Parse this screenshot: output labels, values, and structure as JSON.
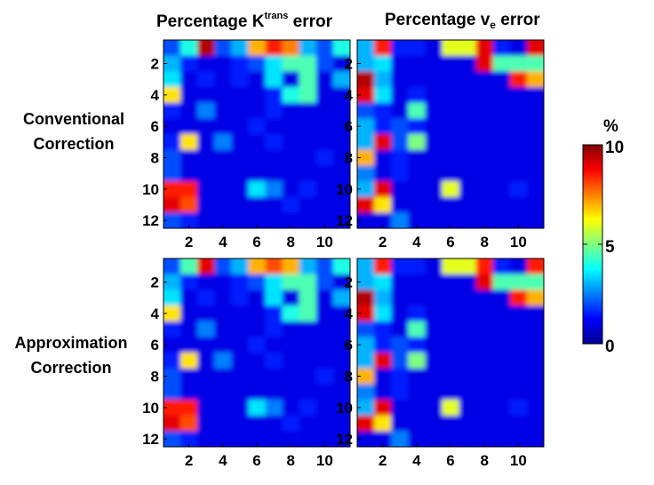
{
  "column_titles": {
    "ktrans_prefix": "Percentage K",
    "ktrans_sup": "trans",
    "ktrans_suffix": " error",
    "ve_prefix": "Percentage v",
    "ve_sub": "e",
    "ve_suffix": " error"
  },
  "row_titles": {
    "conventional_line1": "Conventional",
    "conventional_line2": "Correction",
    "approximation_line1": "Approximation",
    "approximation_line2": "Correction"
  },
  "colorbar": {
    "unit": "%",
    "ticks": [
      "0",
      "5",
      "10"
    ],
    "min": 0,
    "max": 10,
    "colormap": "jet"
  },
  "chart_data": [
    {
      "type": "heatmap",
      "name": "conventional-ktrans",
      "title": "Percentage Ktrans error",
      "row": "Conventional Correction",
      "x_ticks": [
        "2",
        "4",
        "6",
        "8",
        "10"
      ],
      "y_ticks": [
        "2",
        "4",
        "6",
        "8",
        "10",
        "12"
      ],
      "zlim": [
        0,
        10
      ],
      "values": [
        [
          2.0,
          4.0,
          9.5,
          2.0,
          3.0,
          7.0,
          8.5,
          7.5,
          3.0,
          2.0,
          4.0
        ],
        [
          3.0,
          1.5,
          1.0,
          1.0,
          1.5,
          2.0,
          3.5,
          4.5,
          4.5,
          2.0,
          1.0
        ],
        [
          3.5,
          1.0,
          1.5,
          1.0,
          1.5,
          1.0,
          3.5,
          1.0,
          4.5,
          1.0,
          3.0
        ],
        [
          6.5,
          1.0,
          1.0,
          1.0,
          1.0,
          1.0,
          1.5,
          4.0,
          4.5,
          1.0,
          1.0
        ],
        [
          1.5,
          1.0,
          2.5,
          1.0,
          1.0,
          1.0,
          1.5,
          1.0,
          1.0,
          1.0,
          1.0
        ],
        [
          1.0,
          1.0,
          1.0,
          1.0,
          1.0,
          1.5,
          1.0,
          1.0,
          1.0,
          1.0,
          1.0
        ],
        [
          1.5,
          6.5,
          1.0,
          2.5,
          1.0,
          1.0,
          1.5,
          1.0,
          1.0,
          1.0,
          1.0
        ],
        [
          2.0,
          1.0,
          1.0,
          1.0,
          1.0,
          1.0,
          1.0,
          1.0,
          1.0,
          1.5,
          1.0
        ],
        [
          2.0,
          1.0,
          1.0,
          1.0,
          1.0,
          1.0,
          1.0,
          1.0,
          1.0,
          1.0,
          1.0
        ],
        [
          8.5,
          8.5,
          1.0,
          1.0,
          1.0,
          3.5,
          2.5,
          1.0,
          1.5,
          1.0,
          1.0
        ],
        [
          9.0,
          8.0,
          1.0,
          1.0,
          1.0,
          1.0,
          1.0,
          1.5,
          1.0,
          1.0,
          1.0
        ],
        [
          2.0,
          1.5,
          1.0,
          1.0,
          1.0,
          1.0,
          1.0,
          1.0,
          1.0,
          1.0,
          1.0
        ]
      ]
    },
    {
      "type": "heatmap",
      "name": "conventional-ve",
      "title": "Percentage ve error",
      "row": "Conventional Correction",
      "x_ticks": [
        "2",
        "4",
        "6",
        "8",
        "10"
      ],
      "y_ticks": [
        "2",
        "4",
        "6",
        "8",
        "10",
        "12"
      ],
      "zlim": [
        0,
        10
      ],
      "values": [
        [
          3.0,
          8.5,
          1.5,
          1.5,
          1.0,
          6.0,
          6.0,
          9.0,
          1.5,
          1.0,
          9.0
        ],
        [
          3.0,
          3.5,
          1.0,
          1.0,
          1.0,
          1.0,
          1.0,
          9.0,
          4.5,
          4.5,
          4.5
        ],
        [
          9.5,
          3.0,
          1.0,
          1.0,
          1.0,
          1.0,
          1.0,
          1.0,
          1.0,
          8.5,
          7.0
        ],
        [
          9.0,
          3.5,
          1.0,
          1.5,
          1.0,
          1.0,
          1.0,
          1.0,
          1.0,
          1.0,
          1.0
        ],
        [
          2.0,
          1.5,
          1.0,
          4.5,
          1.0,
          1.0,
          1.0,
          1.0,
          1.0,
          1.0,
          1.0
        ],
        [
          3.0,
          1.5,
          2.0,
          1.5,
          1.0,
          1.0,
          1.0,
          1.0,
          1.0,
          1.0,
          1.0
        ],
        [
          3.0,
          9.0,
          2.0,
          5.0,
          1.0,
          1.0,
          1.0,
          1.0,
          1.0,
          1.0,
          1.0
        ],
        [
          7.0,
          1.0,
          1.5,
          1.0,
          1.0,
          1.0,
          1.0,
          1.0,
          1.0,
          1.0,
          1.0
        ],
        [
          2.5,
          1.0,
          1.5,
          1.0,
          1.0,
          1.0,
          1.0,
          1.0,
          1.0,
          1.0,
          1.0
        ],
        [
          3.0,
          9.0,
          1.0,
          1.0,
          1.0,
          6.0,
          1.0,
          1.0,
          1.0,
          1.5,
          1.0
        ],
        [
          9.0,
          6.5,
          1.0,
          1.0,
          1.0,
          1.0,
          1.0,
          1.0,
          1.0,
          1.0,
          1.0
        ],
        [
          1.0,
          1.0,
          2.5,
          1.0,
          1.0,
          1.0,
          1.0,
          1.0,
          1.0,
          1.0,
          1.0
        ]
      ]
    },
    {
      "type": "heatmap",
      "name": "approximation-ktrans",
      "title": "Percentage Ktrans error",
      "row": "Approximation Correction",
      "x_ticks": [
        "2",
        "4",
        "6",
        "8",
        "10"
      ],
      "y_ticks": [
        "2",
        "4",
        "6",
        "8",
        "10",
        "12"
      ],
      "zlim": [
        0,
        10
      ],
      "values": [
        [
          2.0,
          4.5,
          9.0,
          2.0,
          3.0,
          7.0,
          8.0,
          7.0,
          3.0,
          2.0,
          4.0
        ],
        [
          3.0,
          1.5,
          1.0,
          1.0,
          1.5,
          2.0,
          3.5,
          4.5,
          4.5,
          2.0,
          1.0
        ],
        [
          3.5,
          1.0,
          1.5,
          1.0,
          1.5,
          1.0,
          3.5,
          1.0,
          4.5,
          1.0,
          3.0
        ],
        [
          6.5,
          1.0,
          1.0,
          1.0,
          1.0,
          1.0,
          1.5,
          4.0,
          4.5,
          1.0,
          1.0
        ],
        [
          1.5,
          1.0,
          2.5,
          1.0,
          1.0,
          1.0,
          1.5,
          1.0,
          1.0,
          1.0,
          1.0
        ],
        [
          1.0,
          1.0,
          1.0,
          1.0,
          1.0,
          1.5,
          1.0,
          1.0,
          1.0,
          1.0,
          1.0
        ],
        [
          1.5,
          6.5,
          1.0,
          2.5,
          1.0,
          1.0,
          1.5,
          1.0,
          1.0,
          1.0,
          1.0
        ],
        [
          2.0,
          1.0,
          1.0,
          1.0,
          1.0,
          1.0,
          1.0,
          1.0,
          1.0,
          1.5,
          1.0
        ],
        [
          2.0,
          1.0,
          1.0,
          1.0,
          1.0,
          1.0,
          1.0,
          1.0,
          1.0,
          1.0,
          1.0
        ],
        [
          8.5,
          8.5,
          1.0,
          1.0,
          1.0,
          3.5,
          2.5,
          1.0,
          1.5,
          1.0,
          1.0
        ],
        [
          9.0,
          8.0,
          1.0,
          1.0,
          1.0,
          1.0,
          1.0,
          1.5,
          1.0,
          1.0,
          1.0
        ],
        [
          2.0,
          1.5,
          1.0,
          1.0,
          1.0,
          1.0,
          1.0,
          1.0,
          1.0,
          1.0,
          1.0
        ]
      ]
    },
    {
      "type": "heatmap",
      "name": "approximation-ve",
      "title": "Percentage ve error",
      "row": "Approximation Correction",
      "x_ticks": [
        "2",
        "4",
        "6",
        "8",
        "10"
      ],
      "y_ticks": [
        "2",
        "4",
        "6",
        "8",
        "10",
        "12"
      ],
      "zlim": [
        0,
        10
      ],
      "values": [
        [
          3.0,
          8.5,
          1.5,
          1.5,
          1.0,
          6.0,
          6.0,
          8.5,
          1.5,
          1.0,
          8.5
        ],
        [
          3.0,
          3.5,
          1.0,
          1.0,
          1.0,
          1.0,
          1.0,
          9.0,
          4.5,
          4.5,
          4.5
        ],
        [
          9.5,
          3.0,
          1.0,
          1.0,
          1.0,
          1.0,
          1.0,
          1.0,
          1.0,
          8.5,
          7.0
        ],
        [
          9.0,
          3.5,
          1.0,
          1.5,
          1.0,
          1.0,
          1.0,
          1.0,
          1.0,
          1.0,
          1.0
        ],
        [
          2.0,
          1.5,
          1.0,
          4.5,
          1.0,
          1.0,
          1.0,
          1.0,
          1.0,
          1.0,
          1.0
        ],
        [
          3.0,
          1.5,
          2.0,
          1.5,
          1.0,
          1.0,
          1.0,
          1.0,
          1.0,
          1.0,
          1.0
        ],
        [
          3.0,
          9.0,
          2.0,
          5.0,
          1.0,
          1.0,
          1.0,
          1.0,
          1.0,
          1.0,
          1.0
        ],
        [
          7.0,
          1.0,
          1.5,
          1.0,
          1.0,
          1.0,
          1.0,
          1.0,
          1.0,
          1.0,
          1.0
        ],
        [
          2.5,
          1.0,
          1.5,
          1.0,
          1.0,
          1.0,
          1.0,
          1.0,
          1.0,
          1.0,
          1.0
        ],
        [
          3.0,
          9.0,
          1.0,
          1.0,
          1.0,
          6.0,
          1.0,
          1.0,
          1.0,
          1.5,
          1.0
        ],
        [
          9.0,
          6.5,
          1.0,
          1.0,
          1.0,
          1.0,
          1.0,
          1.0,
          1.0,
          1.0,
          1.0
        ],
        [
          1.0,
          1.0,
          2.5,
          1.0,
          1.0,
          1.0,
          1.0,
          1.0,
          1.0,
          1.0,
          1.0
        ]
      ]
    }
  ]
}
